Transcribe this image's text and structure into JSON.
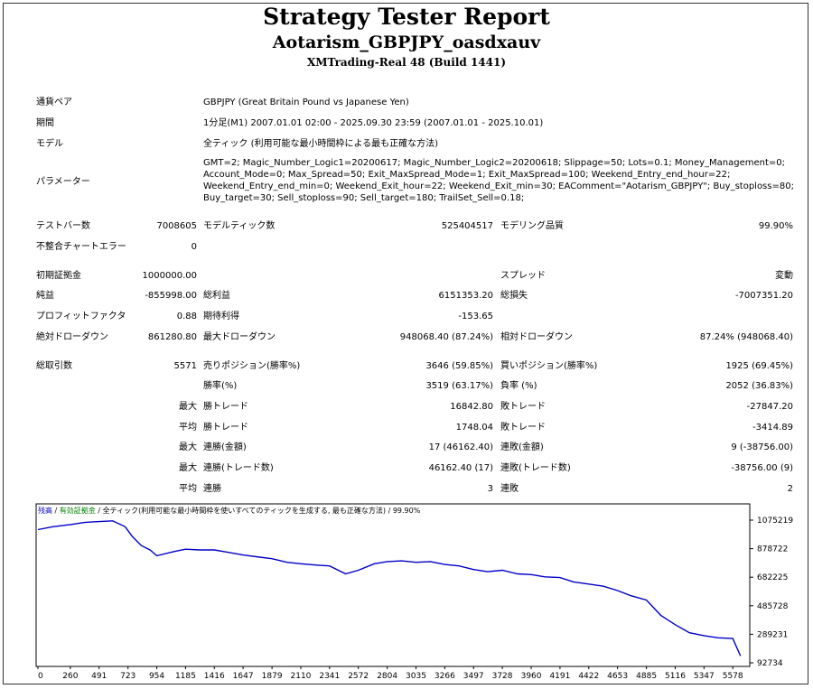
{
  "header": {
    "title": "Strategy Tester Report",
    "ea_name": "Aotarism_GBPJPY_oasdxauv",
    "server": "XMTrading-Real 48 (Build 1441)"
  },
  "settings": {
    "symbol_label": "通貨ペア",
    "symbol_value": "GBPJPY (Great Britain Pound vs Japanese Yen)",
    "period_label": "期間",
    "period_value": "1分足(M1) 2007.01.01 02:00 - 2025.09.30 23:59 (2007.01.01 - 2025.10.01)",
    "model_label": "モデル",
    "model_value": "全ティック (利用可能な最小時間枠による最も正確な方法)",
    "params_label": "パラメーター",
    "params_value": "GMT=2; Magic_Number_Logic1=20200617; Magic_Number_Logic2=20200618; Slippage=50; Lots=0.1; Money_Management=0; Account_Mode=0; Max_Spread=50; Exit_MaxSpread_Mode=1; Exit_MaxSpread=100; Weekend_Entry_end_hour=22; Weekend_Entry_end_min=0; Weekend_Exit_hour=22; Weekend_Exit_min=30; EAComment=\"Aotarism_GBPJPY\"; Buy_stoploss=80; Buy_target=30; Sell_stoploss=90; Sell_target=180; TrailSet_Sell=0.18;"
  },
  "stats": {
    "bars_label": "テストバー数",
    "bars_value": "7008605",
    "ticks_label": "モデルティック数",
    "ticks_value": "525404517",
    "quality_label": "モデリング品質",
    "quality_value": "99.90%",
    "mismatch_label": "不整合チャートエラー",
    "mismatch_value": "0",
    "deposit_label": "初期証拠金",
    "deposit_value": "1000000.00",
    "spread_label": "スプレッド",
    "spread_value": "変動",
    "net_label": "純益",
    "net_value": "-855998.00",
    "gross_profit_label": "総利益",
    "gross_profit_value": "6151353.20",
    "gross_loss_label": "総損失",
    "gross_loss_value": "-7007351.20",
    "pf_label": "プロフィットファクタ",
    "pf_value": "0.88",
    "expected_label": "期待利得",
    "expected_value": "-153.65",
    "abs_dd_label": "絶対ドローダウン",
    "abs_dd_value": "861280.80",
    "max_dd_label": "最大ドローダウン",
    "max_dd_value": "948068.40 (87.24%)",
    "rel_dd_label": "相対ドローダウン",
    "rel_dd_value": "87.24% (948068.40)",
    "trades_label": "総取引数",
    "trades_value": "5571",
    "short_label": "売りポジション(勝率%)",
    "short_value": "3646 (59.85%)",
    "long_label": "買いポジション(勝率%)",
    "long_value": "1925 (69.45%)",
    "win_label": "勝率(%)",
    "win_value": "3519 (63.17%)",
    "loss_label": "負率 (%)",
    "loss_value": "2052 (36.83%)",
    "max_word": "最大",
    "avg_word": "平均",
    "largest_win_label": "勝トレード",
    "largest_win_value": "16842.80",
    "largest_loss_label": "敗トレード",
    "largest_loss_value": "-27847.20",
    "avg_win_label": "勝トレード",
    "avg_win_value": "1748.04",
    "avg_loss_label": "敗トレード",
    "avg_loss_value": "-3414.89",
    "cons_wins_label": "連勝(金額)",
    "cons_wins_value": "17 (46162.40)",
    "cons_losses_label": "連敗(金額)",
    "cons_losses_value": "9 (-38756.00)",
    "cons_profit_label": "連勝(トレード数)",
    "cons_profit_value": "46162.40 (17)",
    "cons_loss_label": "連敗(トレード数)",
    "cons_loss_value": "-38756.00 (9)",
    "avg_cons_wins_label": "連勝",
    "avg_cons_wins_value": "3",
    "avg_cons_losses_label": "連敗",
    "avg_cons_losses_value": "2"
  },
  "chart_legend": {
    "balance": "残高",
    "sep1": " / ",
    "equity": "有効証拠金",
    "sep2": " / ",
    "model": "全ティック(利用可能な最小時間枠を使いすべてのティックを生成する, 最も正確な方法)",
    "quality": " / 99.90%",
    "balance_color": "#0000c8",
    "equity_color": "#008000"
  },
  "chart_data": {
    "type": "line",
    "x": [
      0,
      120,
      260,
      380,
      491,
      600,
      700,
      760,
      830,
      900,
      954,
      1100,
      1185,
      1300,
      1416,
      1550,
      1647,
      1780,
      1879,
      2000,
      2110,
      2250,
      2341,
      2470,
      2572,
      2700,
      2804,
      2920,
      3035,
      3150,
      3266,
      3380,
      3497,
      3610,
      3728,
      3850,
      3960,
      4070,
      4191,
      4300,
      4422,
      4540,
      4653,
      4760,
      4885,
      5000,
      5116,
      5230,
      5347,
      5460,
      5578,
      5640
    ],
    "y": [
      1010000,
      1030000,
      1045000,
      1060000,
      1065000,
      1070000,
      1030000,
      960000,
      900000,
      870000,
      830000,
      860000,
      875000,
      870000,
      870000,
      850000,
      835000,
      820000,
      810000,
      785000,
      775000,
      765000,
      760000,
      705000,
      730000,
      775000,
      790000,
      795000,
      785000,
      790000,
      770000,
      760000,
      735000,
      720000,
      730000,
      705000,
      700000,
      685000,
      680000,
      650000,
      635000,
      620000,
      590000,
      555000,
      525000,
      420000,
      355000,
      300000,
      280000,
      265000,
      260000,
      140000
    ],
    "xticks": [
      "0",
      "260",
      "491",
      "723",
      "954",
      "1185",
      "1416",
      "1647",
      "1879",
      "2110",
      "2341",
      "2572",
      "2804",
      "3035",
      "3266",
      "3497",
      "3728",
      "3960",
      "4191",
      "4422",
      "4653",
      "4885",
      "5116",
      "5347",
      "5578"
    ],
    "yticks": [
      "1075219",
      "878722",
      "682225",
      "485728",
      "289231",
      "92734"
    ],
    "xlim": [
      0,
      5700
    ],
    "ylim": [
      92734,
      1075219
    ],
    "grid": false,
    "line_color": "#0000c8"
  }
}
